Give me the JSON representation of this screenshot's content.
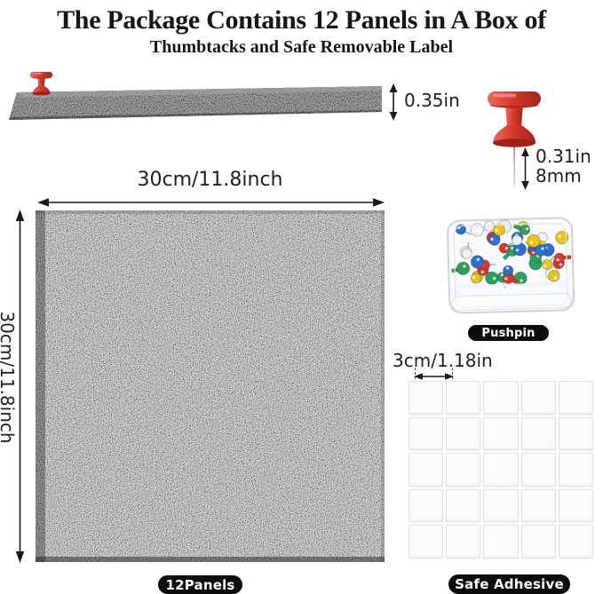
{
  "title": {
    "line1": "The Package Contains 12 Panels in A Box of",
    "line2": "Thumbtacks and Safe Removable Label"
  },
  "dimensions": {
    "panel_thickness": "0.35in",
    "pin_length_inch": "0.31in",
    "pin_length_mm": "8mm",
    "panel_width": "30cm/11.8inch",
    "panel_height": "30cm/11.8inch",
    "adhesive_square": "3cm/1.18in"
  },
  "badges": {
    "panels": "12Panels",
    "pushpin": "Pushpin",
    "adhesive": "Safe Adhesive"
  },
  "adhesive_grid": {
    "rows": 5,
    "cols": 5
  },
  "colors": {
    "pushpin_red": "#d63a2f",
    "badge_bg": "#0d0d0d",
    "badge_text": "#ffffff",
    "dim_text": "#1f1f1f",
    "title_text": "#161616",
    "felt_base": "#7e7e7e",
    "felt_side": "#636363",
    "pin_palette": [
      "#2e6fce",
      "#d63a2f",
      "#2ca05c",
      "#e6c51f",
      "#eef0f2"
    ]
  }
}
